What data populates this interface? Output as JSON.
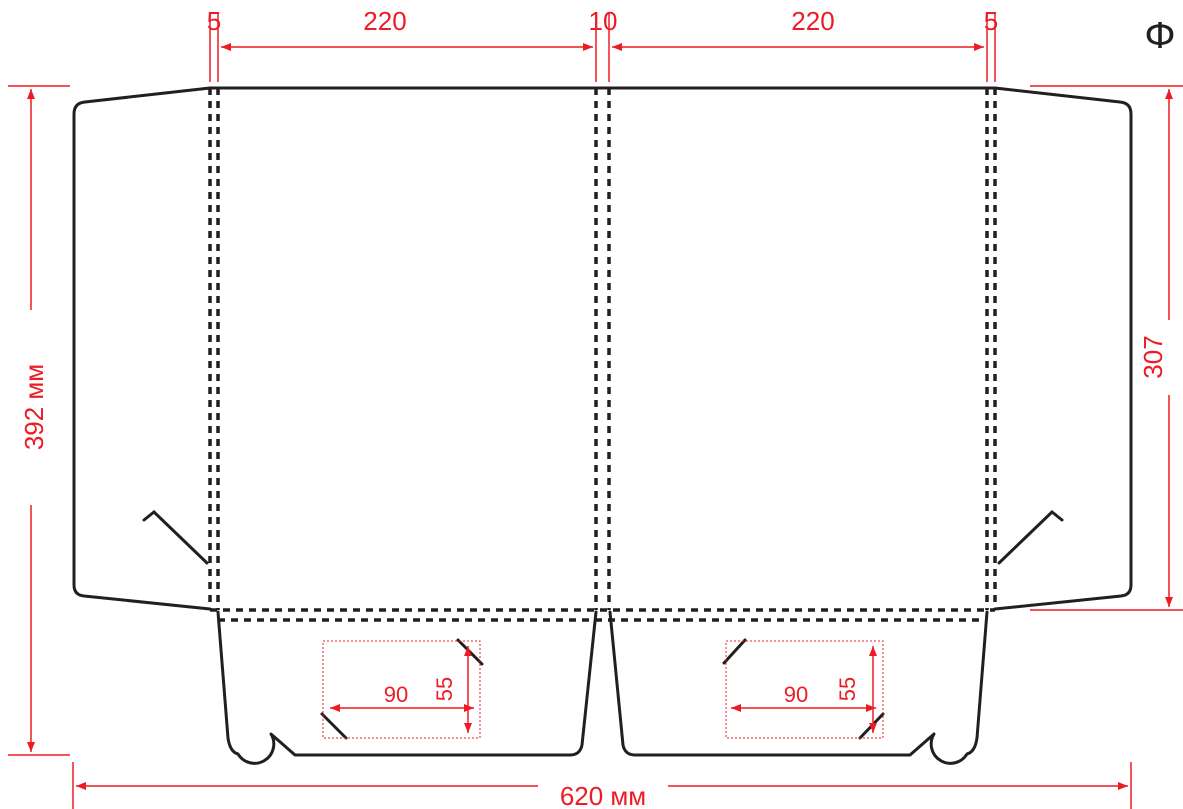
{
  "corner_label": "Ф",
  "dimensions": {
    "top": {
      "left_margin": "5",
      "left_panel": "220",
      "spine": "10",
      "right_panel": "220",
      "right_margin": "5"
    },
    "total_height": "392 мм",
    "flap_height": "307",
    "total_width": "620 мм",
    "card_slot_left": {
      "width": "90",
      "height": "55"
    },
    "card_slot_right": {
      "width": "90",
      "height": "55"
    }
  },
  "colors": {
    "dimension": "#ed1c24",
    "outline": "#231f20"
  }
}
